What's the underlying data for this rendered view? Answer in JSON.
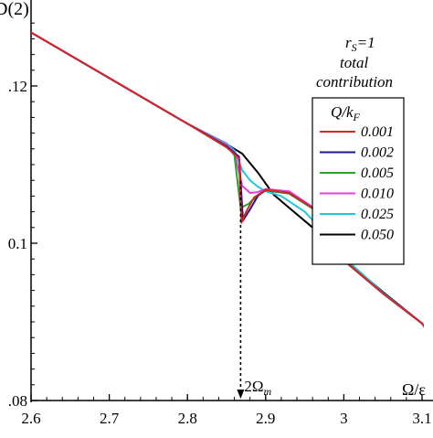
{
  "chart_data": {
    "type": "line",
    "title": "",
    "ylabel": "D(2)",
    "xlabel": "Ω/ε",
    "xlim": [
      2.6,
      3.1
    ],
    "ylim": [
      0.08,
      0.13
    ],
    "x_ticks": [
      "2.6",
      "2.7",
      "2.8",
      "2.9",
      "3",
      "3.1"
    ],
    "y_ticks": [
      ".12",
      "0.1",
      ".08"
    ],
    "annotations": {
      "params": "rS=1",
      "line1": "total",
      "line2": "contribution",
      "marker": "2Ωm",
      "marker_x": 2.868
    },
    "legend": {
      "title": "Q/kF",
      "placement": "right"
    },
    "series": [
      {
        "name": "0.001",
        "color": "#d62728",
        "x": [
          2.6,
          2.7,
          2.8,
          2.85,
          2.866,
          2.869,
          2.875,
          2.885,
          2.9,
          2.93,
          2.96,
          2.99,
          3.0,
          3.05,
          3.1,
          3.15
        ],
        "y": [
          0.1268,
          0.121,
          0.1152,
          0.1122,
          0.1108,
          0.1026,
          0.104,
          0.1058,
          0.1068,
          0.1064,
          0.1045,
          0.1002,
          0.0978,
          0.0936,
          0.0898,
          0.0828
        ]
      },
      {
        "name": "0.002",
        "color": "#1a1a8c",
        "x": [
          2.6,
          2.7,
          2.8,
          2.85,
          2.866,
          2.871,
          2.88,
          2.89,
          2.9,
          2.93,
          2.96,
          2.99,
          3.0,
          3.05,
          3.1,
          3.15
        ],
        "y": [
          0.1268,
          0.121,
          0.1152,
          0.1123,
          0.111,
          0.1029,
          0.1043,
          0.106,
          0.1068,
          0.1064,
          0.1045,
          0.1003,
          0.0978,
          0.0936,
          0.0898,
          0.0828
        ]
      },
      {
        "name": "0.005",
        "color": "#2ca02c",
        "x": [
          2.6,
          2.7,
          2.8,
          2.85,
          2.86,
          2.868,
          2.878,
          2.89,
          2.9,
          2.93,
          2.96,
          2.99,
          3.0,
          3.05,
          3.1,
          3.15
        ],
        "y": [
          0.1268,
          0.121,
          0.1152,
          0.1124,
          0.1112,
          0.1045,
          0.105,
          0.1061,
          0.1067,
          0.1063,
          0.1044,
          0.1004,
          0.0979,
          0.0936,
          0.0898,
          0.0828
        ]
      },
      {
        "name": "0.010",
        "color": "#e040e0",
        "x": [
          2.6,
          2.7,
          2.8,
          2.85,
          2.86,
          2.87,
          2.88,
          2.89,
          2.9,
          2.93,
          2.96,
          2.99,
          3.0,
          3.05,
          3.1,
          3.15
        ],
        "y": [
          0.1268,
          0.121,
          0.1152,
          0.1126,
          0.1115,
          0.1073,
          0.1064,
          0.1065,
          0.1069,
          0.1066,
          0.1046,
          0.1005,
          0.0979,
          0.0936,
          0.0898,
          0.0828
        ]
      },
      {
        "name": "0.025",
        "color": "#22c4e0",
        "x": [
          2.6,
          2.7,
          2.8,
          2.85,
          2.86,
          2.87,
          2.88,
          2.89,
          2.9,
          2.92,
          2.95,
          2.98,
          3.0,
          3.05,
          3.1,
          3.15
        ],
        "y": [
          0.1268,
          0.121,
          0.1152,
          0.1127,
          0.1118,
          0.1093,
          0.108,
          0.1072,
          0.1066,
          0.106,
          0.104,
          0.1008,
          0.0982,
          0.0937,
          0.0898,
          0.0828
        ]
      },
      {
        "name": "0.050",
        "color": "#000000",
        "x": [
          2.6,
          2.7,
          2.8,
          2.85,
          2.87,
          2.89,
          2.91,
          2.93,
          2.96,
          2.99,
          3.0,
          3.05,
          3.1,
          3.15
        ],
        "y": [
          0.1268,
          0.121,
          0.1152,
          0.1126,
          0.1114,
          0.109,
          0.1062,
          0.1045,
          0.102,
          0.099,
          0.098,
          0.0938,
          0.0898,
          0.0828
        ]
      }
    ]
  }
}
